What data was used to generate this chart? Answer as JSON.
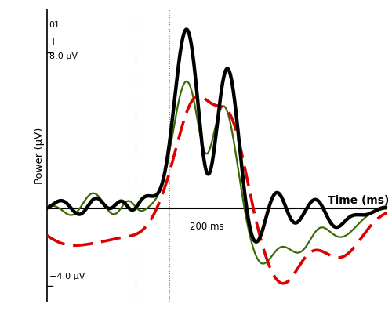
{
  "title_label": "01",
  "plus_label": "+",
  "top_label": "8.0 μV",
  "bottom_label": "−4.0 μV",
  "xlabel": "Time (ms)",
  "ylabel": "Power (μV)",
  "x_annotation": "200 ms",
  "ylim": [
    -4.8,
    10.2
  ],
  "xlim": [
    -50,
    450
  ],
  "zero_line_y": 0,
  "dotted_vlines": [
    80,
    130
  ],
  "background_color": "#ffffff",
  "se_color": "#000000",
  "no_se_color": "#dd0000",
  "nc_color": "#3a6b00",
  "se_lw": 3.2,
  "no_se_lw": 2.6,
  "nc_lw": 1.6
}
